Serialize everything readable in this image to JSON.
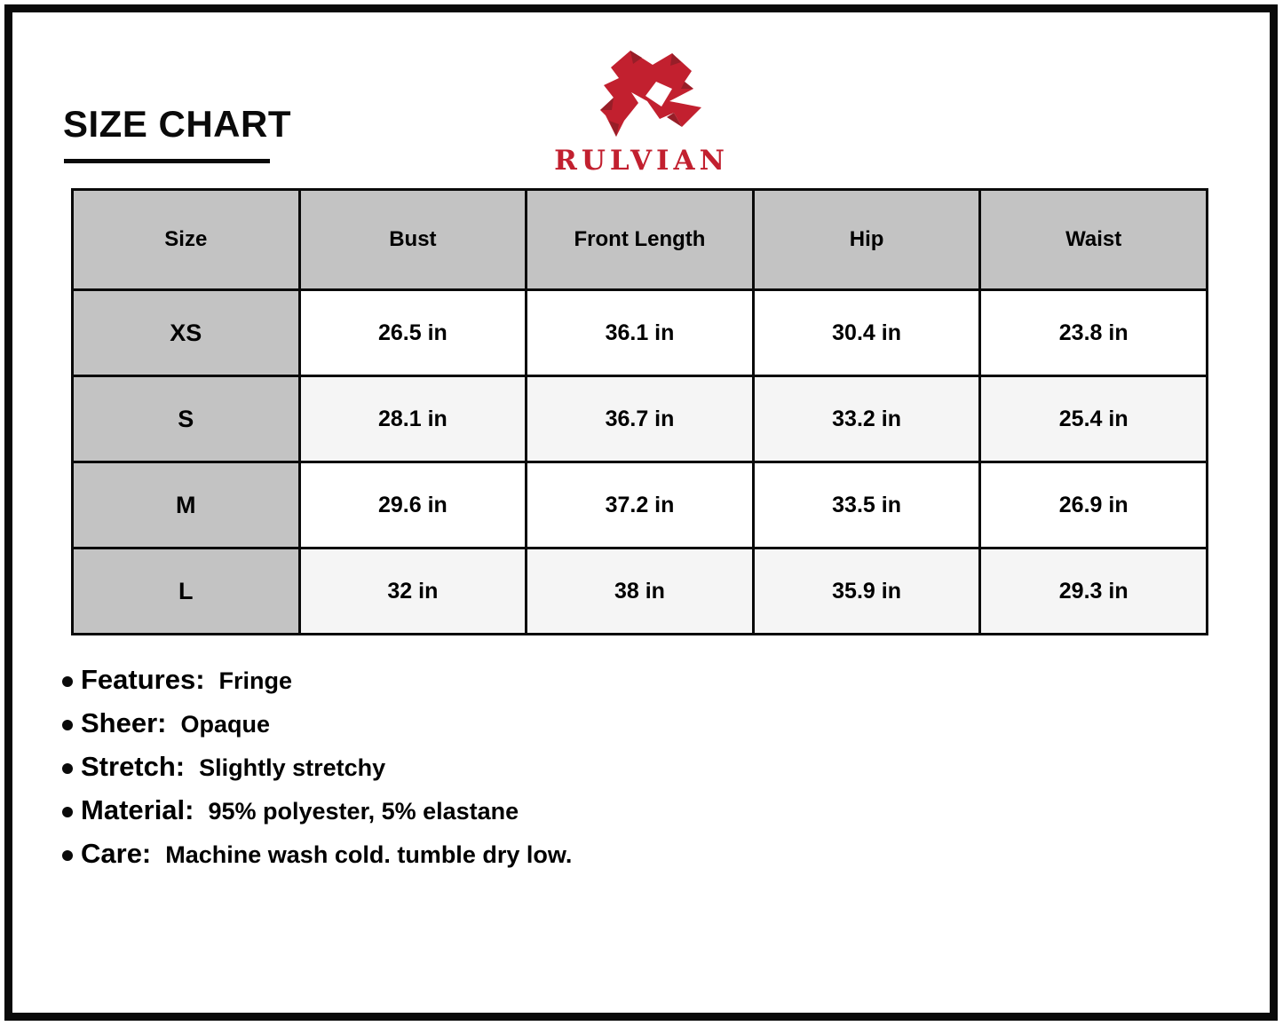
{
  "page": {
    "title": "SIZE CHART"
  },
  "brand": {
    "name": "RULVIAN",
    "logo_icon": "rulvian-r-logo"
  },
  "colors": {
    "brand_red": "#C2202F",
    "brand_red_dark": "#971E28",
    "table_header_bg": "#C3C3C3",
    "row_alt_bg": "#F5F5F5",
    "border_black": "#0A0A0A"
  },
  "size_chart": {
    "columns": [
      "Size",
      "Bust",
      "Front Length",
      "Hip",
      "Waist"
    ],
    "rows": [
      {
        "size": "XS",
        "values": [
          "26.5 in",
          "36.1 in",
          "30.4 in",
          "23.8 in"
        ]
      },
      {
        "size": "S",
        "values": [
          "28.1 in",
          "36.7 in",
          "33.2 in",
          "25.4 in"
        ]
      },
      {
        "size": "M",
        "values": [
          "29.6 in",
          "37.2 in",
          "33.5 in",
          "26.9 in"
        ]
      },
      {
        "size": "L",
        "values": [
          "32 in",
          "38 in",
          "35.9 in",
          "29.3 in"
        ]
      }
    ]
  },
  "details": [
    {
      "label": "Features:",
      "value": "Fringe"
    },
    {
      "label": "Sheer:",
      "value": "Opaque"
    },
    {
      "label": "Stretch:",
      "value": "Slightly stretchy"
    },
    {
      "label": "Material:",
      "value": "95% polyester, 5% elastane"
    },
    {
      "label": "Care:",
      "value": "Machine wash cold. tumble dry low."
    }
  ]
}
